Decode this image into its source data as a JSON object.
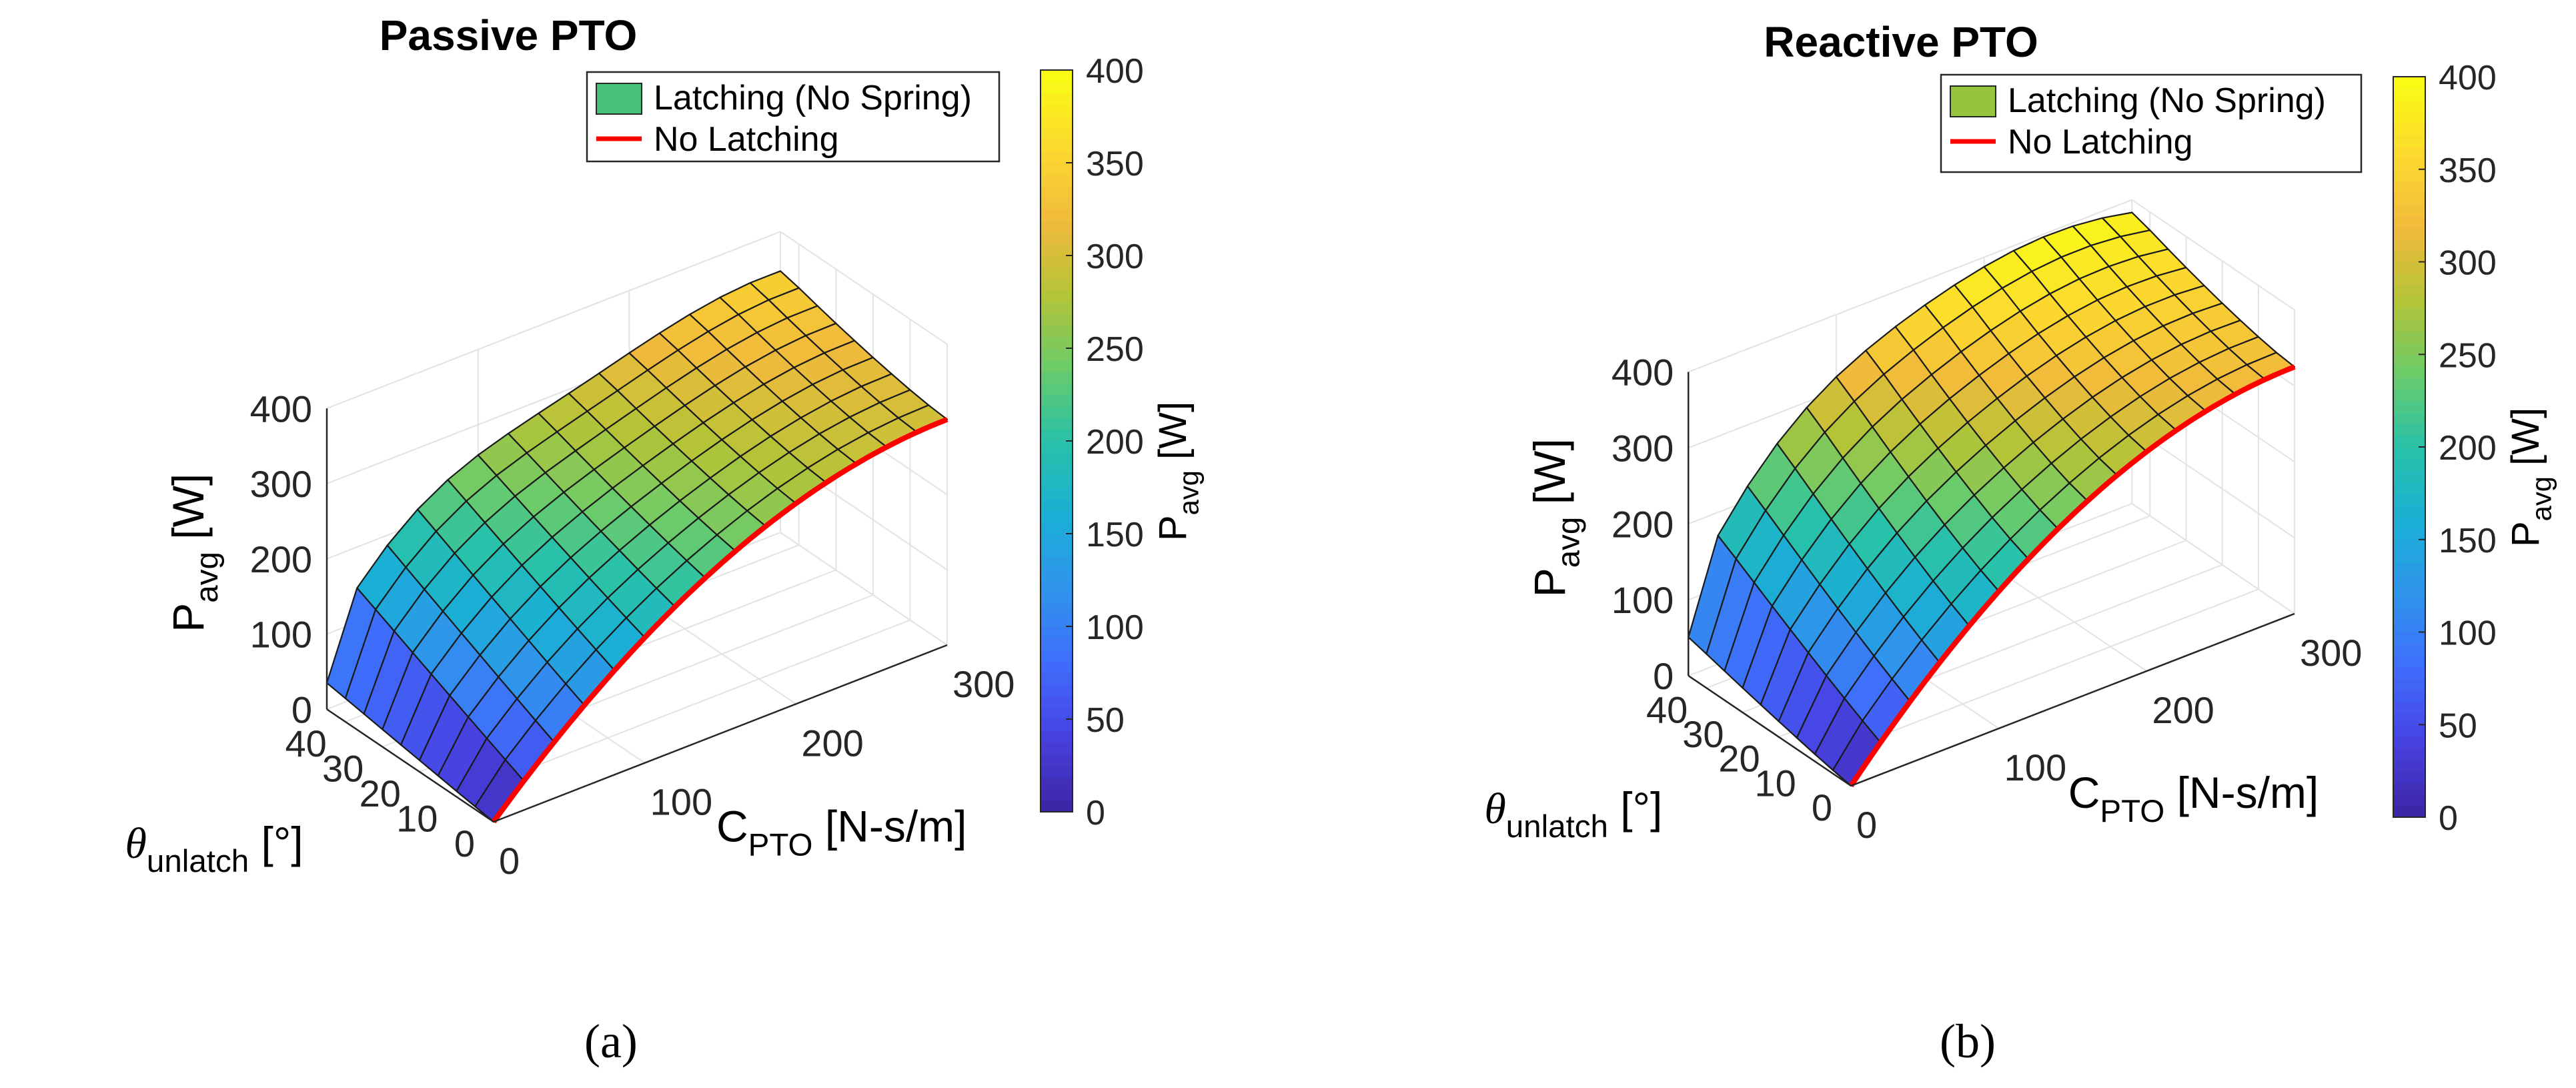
{
  "chart_data": [
    {
      "type": "surface",
      "title": "Passive PTO",
      "xlabel": "C",
      "xlabel_sub": "PTO",
      "xlabel_unit": "[N-s/m]",
      "ylabel_sym": "θ",
      "ylabel_sub": "unlatch",
      "ylabel_unit": "[°]",
      "zlabel": "P",
      "zlabel_sub": "avg",
      "zlabel_unit": "[W]",
      "x_ticks": [
        "0",
        "100",
        "200",
        "300"
      ],
      "y_ticks": [
        "0",
        "10",
        "20",
        "30",
        "40"
      ],
      "z_ticks": [
        "0",
        "100",
        "200",
        "300",
        "400"
      ],
      "xlim": [
        0,
        300
      ],
      "ylim": [
        0,
        45
      ],
      "zlim": [
        0,
        400
      ],
      "grid": true,
      "legend": [
        "Latching (No Spring)",
        "No Latching"
      ],
      "legend_placement": "top-right",
      "colorbar": {
        "label": "P",
        "label_sub": "avg",
        "label_unit": "[W]",
        "ticks": [
          "0",
          "50",
          "100",
          "150",
          "200",
          "250",
          "300",
          "350",
          "400"
        ],
        "range": [
          0,
          400
        ]
      },
      "c_grid": [
        0,
        20,
        40,
        60,
        80,
        100,
        120,
        140,
        160,
        180,
        200,
        220,
        240,
        260,
        280,
        300
      ],
      "theta_grid": [
        0,
        5,
        10,
        15,
        20,
        25,
        30,
        35,
        40,
        45
      ],
      "no_latching_peak_power_W": 300,
      "no_latching_peak_C": 300,
      "latching_peak_power_W": 342,
      "latching_peak_C": 280,
      "latching_peak_theta": 40
    },
    {
      "type": "surface",
      "title": "Reactive PTO",
      "xlabel": "C",
      "xlabel_sub": "PTO",
      "xlabel_unit": "[N-s/m]",
      "ylabel_sym": "θ",
      "ylabel_sub": "unlatch",
      "ylabel_unit": "[°]",
      "zlabel": "P",
      "zlabel_sub": "avg",
      "zlabel_unit": "[W]",
      "x_ticks": [
        "0",
        "100",
        "200",
        "300"
      ],
      "y_ticks": [
        "0",
        "10",
        "20",
        "30",
        "40"
      ],
      "z_ticks": [
        "0",
        "100",
        "200",
        "300",
        "400"
      ],
      "xlim": [
        0,
        300
      ],
      "ylim": [
        0,
        45
      ],
      "zlim": [
        0,
        400
      ],
      "grid": true,
      "legend": [
        "Latching (No Spring)",
        "No Latching"
      ],
      "legend_placement": "top-right",
      "colorbar": {
        "label": "P",
        "label_sub": "avg",
        "label_unit": "[W]",
        "ticks": [
          "0",
          "50",
          "100",
          "150",
          "200",
          "250",
          "300",
          "350",
          "400"
        ],
        "range": [
          0,
          400
        ]
      },
      "c_grid": [
        0,
        20,
        40,
        60,
        80,
        100,
        120,
        140,
        160,
        180,
        200,
        220,
        240,
        260,
        280,
        300
      ],
      "theta_grid": [
        0,
        5,
        10,
        15,
        20,
        25,
        30,
        35,
        40,
        45
      ],
      "no_latching_peak_power_W": 325,
      "no_latching_peak_C": 300,
      "latching_peak_power_W": 400,
      "latching_peak_C": 200,
      "latching_peak_theta": 40
    }
  ],
  "captions": [
    "(a)",
    "(b)"
  ],
  "colors": {
    "parula": [
      "#3e26a8",
      "#4743e2",
      "#3f6ffc",
      "#2f94eb",
      "#1ab0d5",
      "#28c1a9",
      "#6bcb6a",
      "#b3c437",
      "#f0ba3b",
      "#fcd92f",
      "#f9fb15"
    ],
    "no_latching_line": "#ff0000",
    "grid": "#e3e3e3",
    "axis": "#262626",
    "mesh": "#1a1a1a"
  }
}
